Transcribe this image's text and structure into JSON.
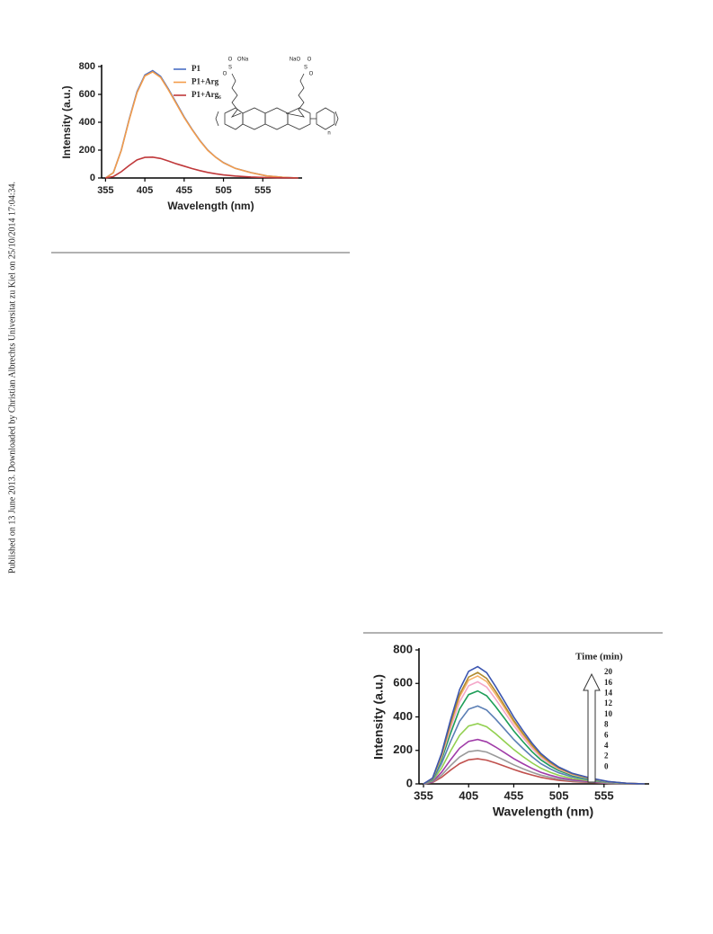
{
  "side_note": "Published on 13 June 2013. Downloaded by Christian Albrechts Universitat zu Kiel on 25/10/2014 17:04:34.",
  "structure_labels": [
    "O",
    "ONa",
    "S",
    "O",
    "NaO",
    "O",
    "S",
    "O",
    "n"
  ],
  "chart_data": [
    {
      "type": "line",
      "xlabel": "Wavelength (nm)",
      "ylabel": "Intensity (a.u.)",
      "x": [
        355,
        365,
        375,
        385,
        395,
        405,
        415,
        425,
        435,
        445,
        455,
        465,
        475,
        485,
        495,
        505,
        520,
        540,
        560,
        580,
        600
      ],
      "xlim": [
        350,
        605
      ],
      "xticks": [
        355,
        405,
        455,
        505,
        555
      ],
      "ylim": [
        0,
        800
      ],
      "yticks": [
        0,
        200,
        400,
        600,
        800
      ],
      "series": [
        {
          "name": "P1",
          "color": "#4a6fc4",
          "values": [
            0,
            39,
            200,
            420,
            620,
            739,
            770,
            730,
            639,
            539,
            439,
            350,
            270,
            200,
            150,
            110,
            69,
            39,
            15,
            5,
            0
          ]
        },
        {
          "name": "P1+Arg",
          "color": "#f39c4a",
          "values": [
            0,
            38,
            198,
            415,
            613,
            732,
            762,
            722,
            632,
            533,
            434,
            347,
            267,
            198,
            149,
            109,
            69,
            38,
            15,
            5,
            0
          ]
        },
        {
          "name": "P1+Arg₆",
          "color": "#c0393b",
          "values": [
            0,
            10,
            45,
            90,
            130,
            148,
            150,
            140,
            122,
            102,
            85,
            68,
            53,
            40,
            30,
            22,
            14,
            7,
            3,
            1,
            0
          ]
        }
      ]
    },
    {
      "type": "line",
      "xlabel": "Wavelength (nm)",
      "ylabel": "Intensity (a.u.)",
      "legend_title": "Time (min)",
      "x": [
        355,
        365,
        375,
        385,
        395,
        405,
        415,
        425,
        435,
        445,
        455,
        465,
        475,
        485,
        495,
        505,
        520,
        540,
        560,
        580,
        600
      ],
      "xlim": [
        350,
        605
      ],
      "xticks": [
        355,
        405,
        455,
        505,
        555
      ],
      "ylim": [
        0,
        800
      ],
      "yticks": [
        0,
        200,
        400,
        600,
        800
      ],
      "series": [
        {
          "name": "0",
          "color": "#c0504d",
          "values": [
            0,
            8,
            39,
            82,
            121,
            144,
            150,
            142,
            125,
            105,
            86,
            68,
            53,
            39,
            29,
            21,
            14,
            8,
            3,
            1,
            0
          ]
        },
        {
          "name": "2",
          "color": "#9a9a9a",
          "values": [
            0,
            10,
            52,
            109,
            161,
            192,
            200,
            190,
            166,
            140,
            114,
            91,
            70,
            52,
            39,
            29,
            18,
            10,
            4,
            1,
            0
          ]
        },
        {
          "name": "4",
          "color": "#a03ca8",
          "values": [
            0,
            13,
            69,
            144,
            213,
            254,
            265,
            251,
            220,
            186,
            151,
            121,
            93,
            69,
            52,
            38,
            24,
            13,
            5,
            2,
            0
          ]
        },
        {
          "name": "6",
          "color": "#92d050",
          "values": [
            0,
            18,
            94,
            196,
            290,
            346,
            360,
            341,
            299,
            252,
            205,
            164,
            126,
            94,
            70,
            51,
            32,
            18,
            7,
            2,
            0
          ]
        },
        {
          "name": "8",
          "color": "#5b7fb5",
          "values": [
            0,
            23,
            121,
            253,
            374,
            446,
            465,
            441,
            386,
            326,
            265,
            212,
            163,
            121,
            91,
            66,
            42,
            23,
            9,
            3,
            0
          ]
        },
        {
          "name": "10",
          "color": "#1e9e58",
          "values": [
            0,
            28,
            144,
            302,
            447,
            533,
            555,
            526,
            461,
            389,
            316,
            253,
            194,
            144,
            108,
            79,
            50,
            28,
            11,
            3,
            0
          ]
        },
        {
          "name": "12",
          "color": "#f4a6c8",
          "values": [
            0,
            31,
            159,
            332,
            491,
            586,
            610,
            578,
            506,
            427,
            348,
            278,
            214,
            159,
            119,
            87,
            55,
            31,
            12,
            4,
            0
          ]
        },
        {
          "name": "14",
          "color": "#f7b36a",
          "values": [
            0,
            32,
            168,
            352,
            519,
            619,
            645,
            611,
            535,
            452,
            368,
            293,
            226,
            168,
            126,
            92,
            58,
            32,
            13,
            4,
            0
          ]
        },
        {
          "name": "16",
          "color": "#b08a2e",
          "values": [
            0,
            33,
            173,
            362,
            535,
            638,
            665,
            630,
            552,
            466,
            379,
            303,
            233,
            173,
            130,
            95,
            60,
            33,
            13,
            4,
            0
          ]
        },
        {
          "name": "20",
          "color": "#3c56b0",
          "values": [
            0,
            35,
            182,
            382,
            564,
            672,
            700,
            664,
            581,
            490,
            399,
            319,
            245,
            182,
            137,
            100,
            63,
            35,
            14,
            4,
            0
          ]
        }
      ]
    }
  ]
}
